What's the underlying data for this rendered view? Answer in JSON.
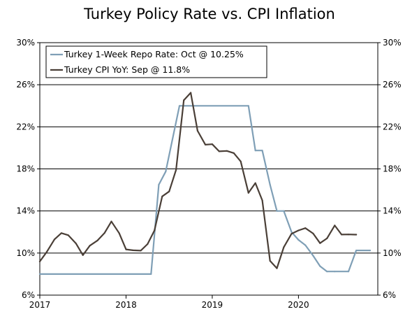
{
  "chart_data": {
    "type": "line",
    "title": "Turkey Policy Rate vs. CPI Inflation",
    "xlabel": "",
    "ylabel": "",
    "x_range": [
      2017.0,
      2020.92
    ],
    "ylim": [
      6,
      30
    ],
    "y_ticks": [
      "30%",
      "26%",
      "22%",
      "18%",
      "14%",
      "10%",
      "6%"
    ],
    "y_tick_values": [
      30,
      26,
      22,
      18,
      14,
      10,
      6
    ],
    "x_ticks": [
      "2017",
      "2018",
      "2019",
      "2020"
    ],
    "x_tick_values": [
      2017,
      2018,
      2019,
      2020
    ],
    "legend_position": "top-left",
    "series": [
      {
        "name": "Turkey 1-Week Repo Rate: Oct @ 10.25%",
        "color": "#7f9fb6",
        "step": true,
        "x": [
          2017.0,
          2018.29,
          2018.38,
          2018.46,
          2018.62,
          2019.42,
          2019.5,
          2019.58,
          2019.67,
          2019.75,
          2019.83,
          2019.92,
          2020.0,
          2020.08,
          2020.17,
          2020.25,
          2020.33,
          2020.42,
          2020.58,
          2020.67,
          2020.83
        ],
        "values": [
          8.0,
          8.0,
          16.5,
          17.75,
          24.0,
          24.0,
          19.75,
          19.75,
          16.5,
          14.0,
          14.0,
          12.0,
          11.25,
          10.75,
          9.75,
          8.75,
          8.25,
          8.25,
          8.25,
          10.25,
          10.25
        ]
      },
      {
        "name": "Turkey CPI YoY: Sep @ 11.8%",
        "color": "#4a3f37",
        "step": false,
        "x": [
          2017.0,
          2017.08,
          2017.17,
          2017.25,
          2017.33,
          2017.42,
          2017.5,
          2017.58,
          2017.67,
          2017.75,
          2017.83,
          2017.92,
          2018.0,
          2018.08,
          2018.17,
          2018.25,
          2018.33,
          2018.42,
          2018.5,
          2018.58,
          2018.67,
          2018.75,
          2018.83,
          2018.92,
          2019.0,
          2019.08,
          2019.17,
          2019.25,
          2019.33,
          2019.42,
          2019.5,
          2019.58,
          2019.67,
          2019.75,
          2019.83,
          2019.92,
          2020.0,
          2020.08,
          2020.17,
          2020.25,
          2020.33,
          2020.42,
          2020.5,
          2020.58,
          2020.67
        ],
        "values": [
          9.2,
          10.1,
          11.3,
          11.9,
          11.7,
          10.9,
          9.8,
          10.7,
          11.2,
          11.9,
          13.0,
          11.9,
          10.35,
          10.26,
          10.23,
          10.85,
          12.15,
          15.39,
          15.85,
          17.9,
          24.52,
          25.24,
          21.62,
          20.3,
          20.35,
          19.67,
          19.71,
          19.5,
          18.71,
          15.72,
          16.65,
          15.01,
          9.26,
          8.55,
          10.56,
          11.84,
          12.15,
          12.37,
          11.86,
          10.94,
          11.39,
          12.62,
          11.76,
          11.77,
          11.75
        ]
      }
    ]
  }
}
